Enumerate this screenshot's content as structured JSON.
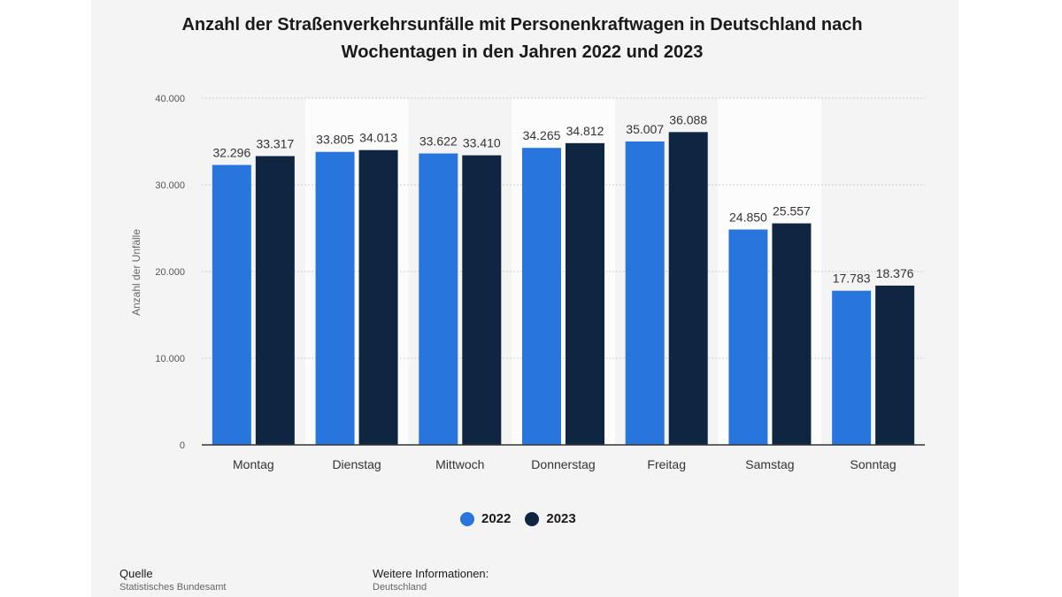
{
  "colors": {
    "c2022": "#2876dd",
    "c2023": "#0f2642",
    "grid": "#cccccc",
    "band": "#fcfcfc",
    "axis": "#333333"
  },
  "footer": {
    "source_label": "Quelle",
    "source_value": "Statistisches Bundesamt",
    "info_label": "Weitere Informationen:",
    "info_value": "Deutschland"
  },
  "chart_data": {
    "type": "bar",
    "title_line1": "Anzahl der Straßenverkehrsunfälle mit Personenkraftwagen in Deutschland nach",
    "title_line2": "Wochentagen in den Jahren 2022 und 2023",
    "ylabel": "Anzahl der Unfälle",
    "xlabel": "",
    "ylim": [
      0,
      40000
    ],
    "y_ticks": [
      0,
      10000,
      20000,
      30000,
      40000
    ],
    "y_tick_labels": [
      "0",
      "10.000",
      "20.000",
      "30.000",
      "40.000"
    ],
    "categories": [
      "Montag",
      "Dienstag",
      "Mittwoch",
      "Donnerstag",
      "Freitag",
      "Samstag",
      "Sonntag"
    ],
    "series": [
      {
        "name": "2022",
        "values": [
          32296,
          33805,
          33622,
          34265,
          35007,
          24850,
          17783
        ],
        "labels": [
          "32.296",
          "33.805",
          "33.622",
          "34.265",
          "35.007",
          "24.850",
          "17.783"
        ]
      },
      {
        "name": "2023",
        "values": [
          33317,
          34013,
          33410,
          34812,
          36088,
          25557,
          18376
        ],
        "labels": [
          "33.317",
          "34.013",
          "33.410",
          "34.812",
          "36.088",
          "25.557",
          "18.376"
        ]
      }
    ],
    "grid": true,
    "legend_position": "bottom-center"
  }
}
